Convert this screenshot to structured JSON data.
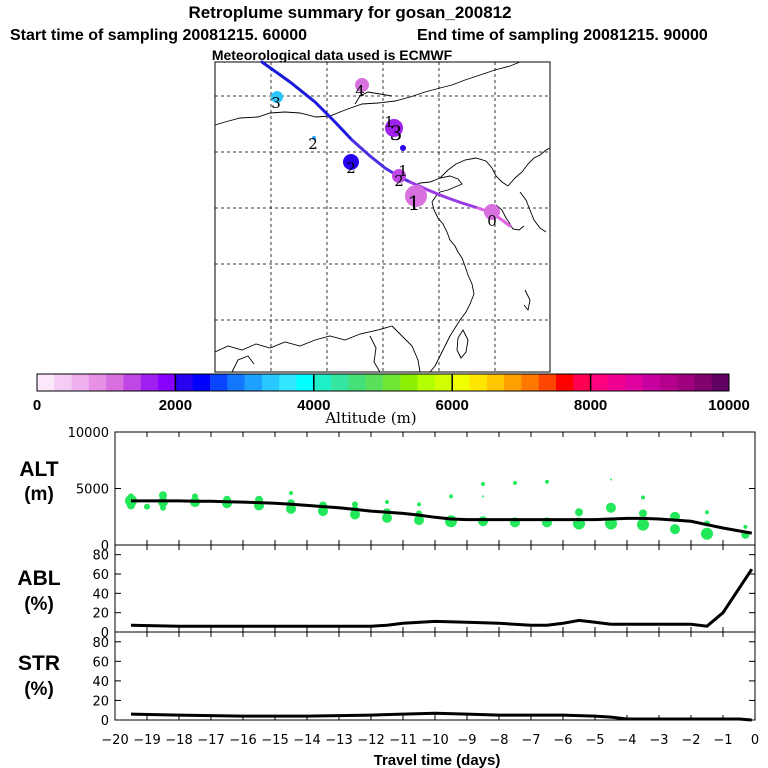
{
  "chart_data": [
    {
      "type": "map-trajectory",
      "title": "Retroplume summary for gosan_200812",
      "subtitle_start": "Start time of sampling 20081215. 60000",
      "subtitle_end": "End time of sampling 20081215. 90000",
      "subtitle_met": "Meteorological data used is ECMWF",
      "trajectory_colors": [
        "#1a1add",
        "#4e2ee0",
        "#9a3ce6",
        "#e060e6"
      ],
      "clusters": [
        {
          "label": "0",
          "day": 0,
          "alt": 1200,
          "size": 8
        },
        {
          "label": "1",
          "day": 1,
          "alt": 1000,
          "size": 11
        },
        {
          "label": "1",
          "day": 1,
          "alt": 1900,
          "size": 4
        },
        {
          "label": "1",
          "day": 1,
          "alt": 2100,
          "size": 3
        },
        {
          "label": "2",
          "day": 2,
          "alt": 1300,
          "size": 7
        },
        {
          "label": "2",
          "day": 2,
          "alt": 2100,
          "size": 8
        },
        {
          "label": "2",
          "day": 2,
          "alt": 3000,
          "size": 2
        },
        {
          "label": "3",
          "day": 3,
          "alt": 1500,
          "size": 9
        },
        {
          "label": "3",
          "day": 3,
          "alt": 3300,
          "size": 6
        },
        {
          "label": "4",
          "day": 4,
          "alt": 1200,
          "size": 7
        }
      ]
    },
    {
      "type": "colorbar",
      "xlabel": "Altitude (m)",
      "ticks": [
        0,
        2000,
        4000,
        6000,
        8000,
        10000
      ],
      "range": [
        0,
        10000
      ],
      "colors": [
        "#fbe8fb",
        "#f5ccf5",
        "#eeb0ee",
        "#e690e6",
        "#d870e0",
        "#c046e6",
        "#a020f0",
        "#8800ff",
        "#2a00f0",
        "#0000ff",
        "#0a46ff",
        "#1478ff",
        "#1ea0ff",
        "#28c8ff",
        "#32e6ff",
        "#00ffff",
        "#20f0c8",
        "#36e6a0",
        "#46e078",
        "#5ae05a",
        "#70e632",
        "#8cf000",
        "#b4ff00",
        "#d2ff00",
        "#f0ff00",
        "#ffe600",
        "#ffc800",
        "#ffa000",
        "#ff7800",
        "#ff4600",
        "#ff0000",
        "#ff0050",
        "#ff0080",
        "#f00090",
        "#e000a0",
        "#c800a0",
        "#b4008c",
        "#a00080",
        "#80006c",
        "#600060"
      ]
    },
    {
      "type": "scatter+line",
      "panel": "altitude",
      "ylabel": "ALT",
      "ylabel_unit": "(m)",
      "x_range": [
        -20,
        0
      ],
      "ylim": [
        0,
        10000
      ],
      "y_ticks": [
        0,
        5000,
        10000
      ],
      "line": {
        "x": [
          -19.5,
          -19,
          -18.5,
          -18,
          -17.5,
          -17,
          -16.5,
          -16,
          -15.5,
          -15,
          -14.5,
          -14,
          -13.5,
          -13,
          -12.5,
          -12,
          -11.5,
          -11,
          -10.5,
          -10,
          -9.5,
          -9,
          -8.5,
          -8,
          -7.5,
          -7,
          -6.5,
          -6,
          -5.5,
          -5,
          -4.5,
          -4,
          -3.5,
          -3,
          -2.5,
          -2,
          -1.5,
          -1,
          -0.5,
          -0.1
        ],
        "y": [
          3900,
          3900,
          3900,
          3900,
          3880,
          3870,
          3830,
          3800,
          3750,
          3700,
          3600,
          3500,
          3400,
          3300,
          3150,
          3000,
          2900,
          2800,
          2650,
          2450,
          2300,
          2250,
          2250,
          2250,
          2250,
          2250,
          2250,
          2250,
          2250,
          2250,
          2300,
          2350,
          2350,
          2300,
          2200,
          2100,
          1800,
          1500,
          1250,
          1050
        ]
      },
      "points": [
        {
          "x": -19.5,
          "y": 3500,
          "s": 4
        },
        {
          "x": -19.5,
          "y": 3900,
          "s": 6
        },
        {
          "x": -19.5,
          "y": 4300,
          "s": 3
        },
        {
          "x": -19,
          "y": 3400,
          "s": 3
        },
        {
          "x": -18.5,
          "y": 3800,
          "s": 5
        },
        {
          "x": -18.5,
          "y": 4400,
          "s": 4
        },
        {
          "x": -18.5,
          "y": 3300,
          "s": 3
        },
        {
          "x": -17.5,
          "y": 3800,
          "s": 5
        },
        {
          "x": -17.5,
          "y": 4300,
          "s": 3
        },
        {
          "x": -16.5,
          "y": 3700,
          "s": 5
        },
        {
          "x": -16.5,
          "y": 4000,
          "s": 4
        },
        {
          "x": -15.5,
          "y": 3500,
          "s": 5
        },
        {
          "x": -15.5,
          "y": 4000,
          "s": 4
        },
        {
          "x": -14.5,
          "y": 3200,
          "s": 5
        },
        {
          "x": -14.5,
          "y": 3700,
          "s": 4
        },
        {
          "x": -14.5,
          "y": 4600,
          "s": 2
        },
        {
          "x": -13.5,
          "y": 3000,
          "s": 5
        },
        {
          "x": -13.5,
          "y": 3500,
          "s": 4
        },
        {
          "x": -12.5,
          "y": 2700,
          "s": 5
        },
        {
          "x": -12.5,
          "y": 3100,
          "s": 4
        },
        {
          "x": -12.5,
          "y": 3600,
          "s": 3
        },
        {
          "x": -11.5,
          "y": 2400,
          "s": 5
        },
        {
          "x": -11.5,
          "y": 2900,
          "s": 4
        },
        {
          "x": -11.5,
          "y": 3800,
          "s": 2
        },
        {
          "x": -10.5,
          "y": 2200,
          "s": 5
        },
        {
          "x": -10.5,
          "y": 2800,
          "s": 3
        },
        {
          "x": -10.5,
          "y": 3600,
          "s": 2
        },
        {
          "x": -9.5,
          "y": 2100,
          "s": 6
        },
        {
          "x": -9.5,
          "y": 4300,
          "s": 2
        },
        {
          "x": -8.5,
          "y": 2100,
          "s": 5
        },
        {
          "x": -8.5,
          "y": 4300,
          "s": 1
        },
        {
          "x": -8.5,
          "y": 5400,
          "s": 2
        },
        {
          "x": -7.5,
          "y": 2000,
          "s": 5
        },
        {
          "x": -7.5,
          "y": 5500,
          "s": 2
        },
        {
          "x": -6.5,
          "y": 2000,
          "s": 5
        },
        {
          "x": -6.5,
          "y": 5600,
          "s": 2
        },
        {
          "x": -5.5,
          "y": 1900,
          "s": 6
        },
        {
          "x": -5.5,
          "y": 2900,
          "s": 4
        },
        {
          "x": -4.5,
          "y": 1900,
          "s": 6
        },
        {
          "x": -4.5,
          "y": 3300,
          "s": 5
        },
        {
          "x": -4.5,
          "y": 5800,
          "s": 1
        },
        {
          "x": -3.5,
          "y": 1800,
          "s": 6
        },
        {
          "x": -3.5,
          "y": 2800,
          "s": 4
        },
        {
          "x": -3.5,
          "y": 4200,
          "s": 2
        },
        {
          "x": -2.5,
          "y": 1400,
          "s": 5
        },
        {
          "x": -2.5,
          "y": 2500,
          "s": 5
        },
        {
          "x": -1.5,
          "y": 1000,
          "s": 6
        },
        {
          "x": -1.5,
          "y": 1900,
          "s": 3
        },
        {
          "x": -1.5,
          "y": 2900,
          "s": 2
        },
        {
          "x": -0.3,
          "y": 900,
          "s": 4
        },
        {
          "x": -0.3,
          "y": 1600,
          "s": 2
        }
      ]
    },
    {
      "type": "line",
      "panel": "abl",
      "ylabel": "ABL",
      "ylabel_unit": "(%)",
      "x_range": [
        -20,
        0
      ],
      "ylim": [
        0,
        90
      ],
      "y_ticks": [
        0,
        20,
        40,
        60,
        80
      ],
      "series": [
        {
          "name": "ABL",
          "x": [
            -19.5,
            -18,
            -16,
            -14,
            -12,
            -11.5,
            -11,
            -10,
            -9,
            -8,
            -7,
            -6.5,
            -6,
            -5.5,
            -5,
            -4.5,
            -4,
            -3,
            -2,
            -1.5,
            -1,
            -0.5,
            -0.1
          ],
          "y": [
            7,
            6,
            6,
            6,
            6,
            7,
            9,
            11,
            10,
            9,
            7,
            7,
            9,
            12,
            10,
            8,
            8,
            8,
            8,
            6,
            20,
            45,
            65
          ]
        }
      ]
    },
    {
      "type": "line",
      "panel": "str",
      "ylabel": "STR",
      "ylabel_unit": "(%)",
      "x_range": [
        -20,
        0
      ],
      "ylim": [
        0,
        90
      ],
      "y_ticks": [
        0,
        20,
        40,
        60,
        80
      ],
      "xlabel": "Travel time (days)",
      "x_ticks": [
        -20,
        -19,
        -18,
        -17,
        -16,
        -15,
        -14,
        -13,
        -12,
        -11,
        -10,
        -9,
        -8,
        -7,
        -6,
        -5,
        -4,
        -3,
        -2,
        -1,
        0
      ],
      "series": [
        {
          "name": "STR",
          "x": [
            -19.5,
            -18,
            -16,
            -14,
            -12,
            -11,
            -10,
            -9,
            -8,
            -7,
            -6,
            -5,
            -4.5,
            -4,
            -3,
            -2,
            -1,
            -0.5,
            -0.1
          ],
          "y": [
            6,
            5,
            4,
            4,
            5,
            6,
            7,
            6,
            5,
            5,
            5,
            4,
            3,
            1,
            1,
            1,
            1,
            1,
            0
          ]
        }
      ]
    }
  ]
}
